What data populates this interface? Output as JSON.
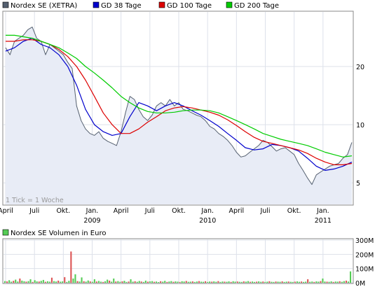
{
  "chart_data": [
    {
      "type": "line",
      "legend": [
        {
          "name": "Nordex SE (XETRA)",
          "color": "#556070"
        },
        {
          "name": "GD 38 Tage",
          "color": "#0000cc"
        },
        {
          "name": "GD 100 Tage",
          "color": "#dd0000"
        },
        {
          "name": "GD 200 Tage",
          "color": "#00cc00"
        }
      ],
      "y_scale": "log",
      "ylim": [
        3.9,
        38
      ],
      "y_ticks": [
        "5",
        "10",
        "20"
      ],
      "x_tick_labels": [
        {
          "label": "April",
          "t": 0,
          "year": ""
        },
        {
          "label": "Juli",
          "t": 13,
          "year": ""
        },
        {
          "label": "Okt.",
          "t": 26,
          "year": ""
        },
        {
          "label": "Jan.",
          "t": 39,
          "year": "2009"
        },
        {
          "label": "April",
          "t": 52,
          "year": ""
        },
        {
          "label": "Juli",
          "t": 65,
          "year": ""
        },
        {
          "label": "Okt.",
          "t": 78,
          "year": ""
        },
        {
          "label": "Jan.",
          "t": 91,
          "year": "2010"
        },
        {
          "label": "April",
          "t": 104,
          "year": ""
        },
        {
          "label": "Juli",
          "t": 117,
          "year": ""
        },
        {
          "label": "Okt.",
          "t": 130,
          "year": ""
        },
        {
          "label": "Jan.",
          "t": 143,
          "year": "2011"
        }
      ],
      "note": "1 Tick = 1 Woche",
      "series": [
        {
          "name": "Nordex SE (XETRA)",
          "t": [
            0,
            2,
            4,
            6,
            8,
            10,
            12,
            14,
            16,
            18,
            20,
            22,
            24,
            26,
            28,
            30,
            32,
            34,
            36,
            38,
            40,
            42,
            44,
            46,
            48,
            50,
            52,
            54,
            56,
            58,
            60,
            62,
            64,
            66,
            68,
            70,
            72,
            74,
            76,
            78,
            80,
            82,
            84,
            86,
            88,
            90,
            92,
            94,
            96,
            98,
            100,
            102,
            104,
            106,
            108,
            110,
            112,
            114,
            116,
            118,
            120,
            122,
            124,
            126,
            128,
            130,
            132,
            134,
            136,
            138,
            140,
            142,
            144,
            146,
            148,
            150,
            152,
            154,
            156
          ],
          "values": [
            25,
            23,
            27,
            28,
            29,
            31,
            32,
            28,
            27,
            23,
            26,
            25,
            24,
            23,
            21,
            19.5,
            12.5,
            10.5,
            9.5,
            9,
            8.8,
            9.2,
            8.5,
            8.2,
            8,
            7.8,
            9.2,
            11.5,
            14,
            13.5,
            12,
            11,
            10.5,
            11.2,
            12.5,
            13,
            12.5,
            13.5,
            12.5,
            13,
            12,
            11.8,
            11.5,
            11.2,
            11,
            10.5,
            9.8,
            9.5,
            9,
            8.7,
            8.3,
            7.8,
            7.2,
            6.8,
            6.9,
            7.2,
            7.5,
            7.8,
            8.3,
            8.1,
            7.7,
            7.3,
            7.5,
            7.6,
            7.3,
            7,
            6.3,
            5.8,
            5.3,
            4.9,
            5.5,
            5.7,
            5.9,
            6.1,
            6.2,
            6.3,
            6.7,
            7,
            8.1
          ]
        },
        {
          "name": "GD 38 Tage",
          "t": [
            0,
            4,
            8,
            12,
            16,
            20,
            24,
            28,
            32,
            36,
            40,
            44,
            48,
            52,
            56,
            60,
            64,
            68,
            72,
            76,
            80,
            84,
            88,
            92,
            96,
            100,
            104,
            108,
            112,
            116,
            120,
            124,
            128,
            132,
            136,
            140,
            144,
            148,
            152,
            156
          ],
          "values": [
            24,
            25,
            27,
            28,
            26,
            25,
            23,
            20,
            16,
            12,
            10,
            9.2,
            8.8,
            9,
            11,
            13,
            12.5,
            11.8,
            12.5,
            13,
            12.5,
            11.8,
            11.2,
            10.5,
            9.8,
            9,
            8.3,
            7.6,
            7.4,
            7.5,
            7.9,
            7.8,
            7.6,
            7.3,
            6.7,
            6.1,
            5.8,
            5.9,
            6.1,
            6.4
          ]
        },
        {
          "name": "GD 100 Tage",
          "t": [
            0,
            4,
            8,
            12,
            16,
            20,
            24,
            28,
            32,
            36,
            40,
            44,
            48,
            52,
            56,
            60,
            64,
            68,
            72,
            76,
            80,
            84,
            88,
            92,
            96,
            100,
            104,
            108,
            112,
            116,
            120,
            124,
            128,
            132,
            136,
            140,
            144,
            148,
            152,
            156
          ],
          "values": [
            27,
            27,
            27.5,
            27.5,
            27,
            26,
            24.5,
            22.5,
            20,
            17,
            14,
            11.5,
            10,
            9,
            9,
            9.5,
            10.3,
            11,
            11.8,
            12.2,
            12.4,
            12.2,
            11.9,
            11.6,
            11.2,
            10.6,
            9.9,
            9.2,
            8.6,
            8.2,
            8,
            7.8,
            7.6,
            7.4,
            7.1,
            6.7,
            6.4,
            6.2,
            6.2,
            6.3
          ]
        },
        {
          "name": "GD 200 Tage",
          "t": [
            0,
            4,
            8,
            12,
            16,
            20,
            24,
            28,
            32,
            36,
            40,
            44,
            48,
            52,
            56,
            60,
            64,
            68,
            72,
            76,
            80,
            84,
            88,
            92,
            96,
            100,
            104,
            108,
            112,
            116,
            120,
            124,
            128,
            132,
            136,
            140,
            144,
            148,
            152,
            156
          ],
          "values": [
            29,
            29,
            28.5,
            28,
            27,
            26,
            25,
            23.5,
            22,
            20,
            18.5,
            17,
            15.5,
            14,
            13,
            12.2,
            11.7,
            11.5,
            11.5,
            11.6,
            11.8,
            11.9,
            11.9,
            11.8,
            11.5,
            11,
            10.5,
            10,
            9.5,
            9,
            8.7,
            8.4,
            8.2,
            8,
            7.8,
            7.5,
            7.2,
            7,
            6.8,
            6.9
          ]
        }
      ]
    },
    {
      "type": "bar",
      "title": "Nordex SE Volumen in Euro",
      "y_ticks": [
        "0M",
        "100M",
        "200M",
        "300M"
      ],
      "ylim": [
        0,
        300
      ],
      "unit": "Mio. Euro",
      "values": [
        12,
        10,
        18,
        8,
        14,
        22,
        9,
        30,
        15,
        11,
        8,
        12,
        25,
        6,
        18,
        10,
        9,
        14,
        20,
        7,
        11,
        8,
        36,
        12,
        9,
        15,
        8,
        10,
        40,
        6,
        14,
        220,
        30,
        60,
        12,
        9,
        38,
        11,
        8,
        16,
        10,
        7,
        25,
        9,
        13,
        8,
        6,
        11,
        22,
        15,
        8,
        30,
        9,
        12,
        7,
        10,
        14,
        6,
        9,
        25,
        8,
        11,
        7,
        13,
        9,
        6,
        15,
        8,
        10,
        12,
        7,
        9,
        5,
        11,
        8,
        14,
        6,
        9,
        12,
        7,
        10,
        8,
        6,
        11,
        9,
        13,
        7,
        8,
        10,
        6,
        9,
        12,
        8,
        7,
        11,
        6,
        9,
        8,
        10,
        7,
        12,
        6,
        9,
        8,
        7,
        10,
        6,
        11,
        8,
        9,
        7,
        6,
        10,
        8,
        12,
        7,
        9,
        6,
        8,
        10,
        7,
        9,
        6,
        8,
        11,
        7,
        6,
        9,
        8,
        7,
        10,
        6,
        8,
        9,
        7,
        6,
        8,
        10,
        7,
        9,
        6,
        8,
        25,
        7,
        9,
        6,
        10,
        8,
        12,
        30,
        9,
        8,
        7,
        10,
        6,
        9,
        8,
        11,
        7,
        12,
        15,
        9,
        80
      ]
    }
  ]
}
